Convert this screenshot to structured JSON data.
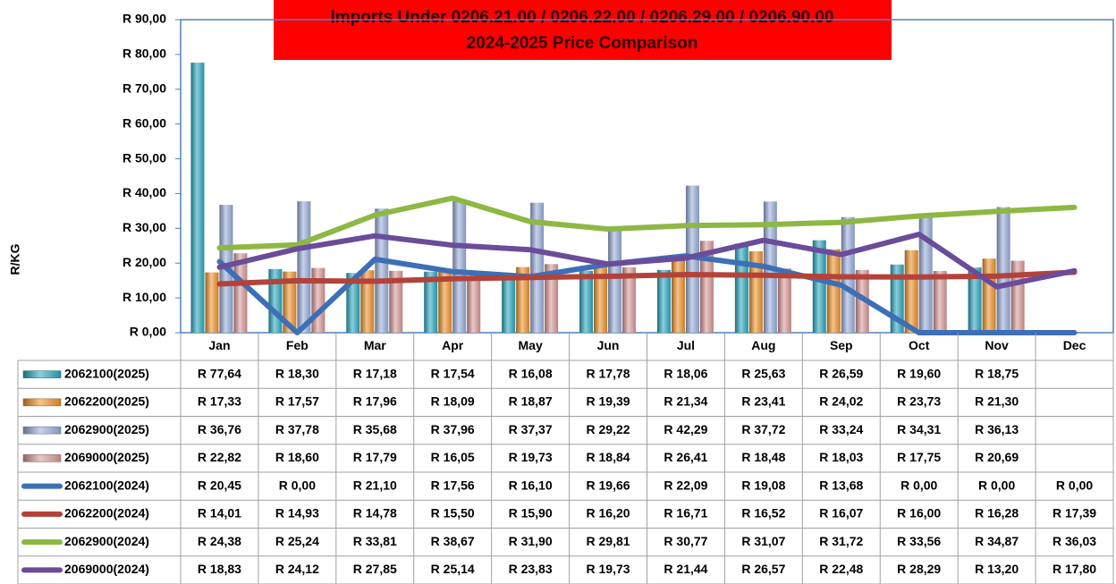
{
  "chart_data": {
    "type": "bar",
    "title": [
      "Imports Under    0206.21.00 / 0206.22.00 / 0206.29.00 / 0206.90.00",
      "2024-2025  Price Comparison"
    ],
    "y_label": "R/KG",
    "categories": [
      "Jan",
      "Feb",
      "Mar",
      "Apr",
      "May",
      "Jun",
      "Jul",
      "Aug",
      "Sep",
      "Oct",
      "Nov",
      "Dec"
    ],
    "ylim": [
      0,
      90
    ],
    "yticks": [
      {
        "value": 0,
        "label": "R 0,00"
      },
      {
        "value": 10,
        "label": "R 10,00"
      },
      {
        "value": 20,
        "label": "R 20,00"
      },
      {
        "value": 30,
        "label": "R 30,00"
      },
      {
        "value": 40,
        "label": "R 40,00"
      },
      {
        "value": 50,
        "label": "R 50,00"
      },
      {
        "value": 60,
        "label": "R 60,00"
      },
      {
        "value": 70,
        "label": "R 70,00"
      },
      {
        "value": 80,
        "label": "R 80,00"
      },
      {
        "value": 90,
        "label": "R 90,00"
      }
    ],
    "grid": false,
    "series": [
      {
        "name": "2062100(2025)",
        "type": "bar",
        "color": "#2aa7c0",
        "values": [
          77.64,
          18.3,
          17.18,
          17.54,
          16.08,
          17.78,
          18.06,
          25.63,
          26.59,
          19.6,
          18.75,
          null
        ],
        "value_labels": [
          "R 77,64",
          "R 18,30",
          "R 17,18",
          "R 17,54",
          "R 16,08",
          "R 17,78",
          "R 18,06",
          "R 25,63",
          "R 26,59",
          "R 19,60",
          "R 18,75",
          null
        ]
      },
      {
        "name": "2062200(2025)",
        "type": "bar",
        "color": "#f0922a",
        "values": [
          17.33,
          17.57,
          17.96,
          18.09,
          18.87,
          19.39,
          21.34,
          23.41,
          24.02,
          23.73,
          21.3,
          null
        ],
        "value_labels": [
          "R 17,33",
          "R 17,57",
          "R 17,96",
          "R 18,09",
          "R 18,87",
          "R 19,39",
          "R 21,34",
          "R 23,41",
          "R 24,02",
          "R 23,73",
          "R 21,30",
          null
        ]
      },
      {
        "name": "2062900(2025)",
        "type": "bar",
        "color": "#9aaedb",
        "values": [
          36.76,
          37.78,
          35.68,
          37.96,
          37.37,
          29.22,
          42.29,
          37.72,
          33.24,
          34.31,
          36.13,
          null
        ],
        "value_labels": [
          "R 36,76",
          "R 37,78",
          "R 35,68",
          "R 37,96",
          "R 37,37",
          "R 29,22",
          "R 42,29",
          "R 37,72",
          "R 33,24",
          "R 34,31",
          "R 36,13",
          null
        ]
      },
      {
        "name": "2069000(2025)",
        "type": "bar",
        "color": "#d99a98",
        "values": [
          22.82,
          18.6,
          17.79,
          16.05,
          19.73,
          18.84,
          26.41,
          18.48,
          18.03,
          17.75,
          20.69,
          null
        ],
        "value_labels": [
          "R 22,82",
          "R 18,60",
          "R 17,79",
          "R 16,05",
          "R 19,73",
          "R 18,84",
          "R 26,41",
          "R 18,48",
          "R 18,03",
          "R 17,75",
          "R 20,69",
          null
        ]
      },
      {
        "name": "2062100(2024)",
        "type": "line",
        "color": "#3d6fb6",
        "values": [
          20.45,
          0.0,
          21.1,
          17.56,
          16.1,
          19.66,
          22.09,
          19.08,
          13.68,
          0.0,
          0.0,
          0.0
        ],
        "value_labels": [
          "R 20,45",
          "R 0,00",
          "R 21,10",
          "R 17,56",
          "R 16,10",
          "R 19,66",
          "R 22,09",
          "R 19,08",
          "R 13,68",
          "R 0,00",
          "R 0,00",
          "R 0,00"
        ]
      },
      {
        "name": "2062200(2024)",
        "type": "line",
        "color": "#b3423a",
        "values": [
          14.01,
          14.93,
          14.78,
          15.5,
          15.9,
          16.2,
          16.71,
          16.52,
          16.07,
          16.0,
          16.28,
          17.39
        ],
        "value_labels": [
          "R 14,01",
          "R 14,93",
          "R 14,78",
          "R 15,50",
          "R 15,90",
          "R 16,20",
          "R 16,71",
          "R 16,52",
          "R 16,07",
          "R 16,00",
          "R 16,28",
          "R 17,39"
        ]
      },
      {
        "name": "2062900(2024)",
        "type": "line",
        "color": "#8db843",
        "values": [
          24.38,
          25.24,
          33.81,
          38.67,
          31.9,
          29.81,
          30.77,
          31.07,
          31.72,
          33.56,
          34.87,
          36.03
        ],
        "value_labels": [
          "R 24,38",
          "R 25,24",
          "R 33,81",
          "R 38,67",
          "R 31,90",
          "R 29,81",
          "R 30,77",
          "R 31,07",
          "R 31,72",
          "R 33,56",
          "R 34,87",
          "R 36,03"
        ]
      },
      {
        "name": "2069000(2024)",
        "type": "line",
        "color": "#6b4c9a",
        "values": [
          18.83,
          24.12,
          27.85,
          25.14,
          23.83,
          19.73,
          21.44,
          26.57,
          22.48,
          28.29,
          13.2,
          17.8
        ],
        "value_labels": [
          "R 18,83",
          "R 24,12",
          "R 27,85",
          "R 25,14",
          "R 23,83",
          "R 19,73",
          "R 21,44",
          "R 26,57",
          "R 22,48",
          "R 28,29",
          "R 13,20",
          "R 17,80"
        ]
      }
    ]
  }
}
